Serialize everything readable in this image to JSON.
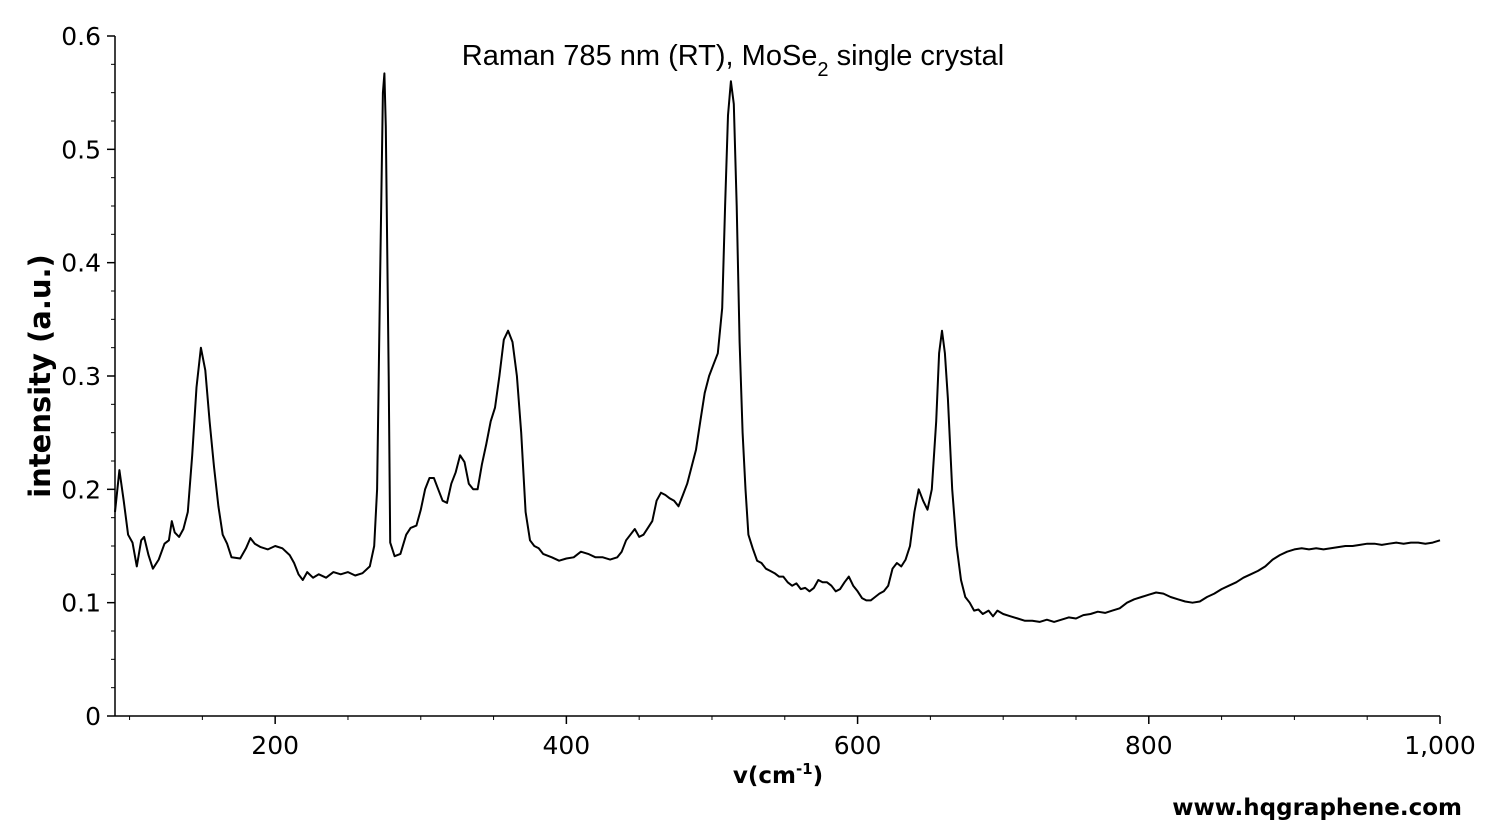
{
  "chart_data": {
    "type": "line",
    "title": {
      "prefix": "Raman 785 nm (RT), MoSe",
      "subscript": "2",
      "suffix": " single crystal"
    },
    "xlabel": {
      "main": "v(cm",
      "superscript": "-1",
      "close": ")"
    },
    "ylabel": "intensity (a.u.)",
    "credit": "www.hqgraphene.com",
    "xlim": [
      90,
      1000
    ],
    "ylim": [
      0,
      0.6
    ],
    "x_ticks": [
      {
        "value": 200,
        "label": "200"
      },
      {
        "value": 400,
        "label": "400"
      },
      {
        "value": 600,
        "label": "600"
      },
      {
        "value": 800,
        "label": "800"
      },
      {
        "value": 1000,
        "label": "1,000"
      }
    ],
    "y_ticks": [
      {
        "value": 0,
        "label": "0"
      },
      {
        "value": 0.1,
        "label": "0.1"
      },
      {
        "value": 0.2,
        "label": "0.2"
      },
      {
        "value": 0.3,
        "label": "0.3"
      },
      {
        "value": 0.4,
        "label": "0.4"
      },
      {
        "value": 0.5,
        "label": "0.5"
      },
      {
        "value": 0.6,
        "label": "0.6"
      }
    ],
    "grid": false,
    "line_color": "#000000",
    "series": [
      {
        "points": [
          [
            90,
            0.18
          ],
          [
            93,
            0.217
          ],
          [
            96,
            0.19
          ],
          [
            99,
            0.16
          ],
          [
            102,
            0.153
          ],
          [
            105,
            0.132
          ],
          [
            108,
            0.155
          ],
          [
            110,
            0.158
          ],
          [
            113,
            0.142
          ],
          [
            116,
            0.13
          ],
          [
            120,
            0.138
          ],
          [
            124,
            0.152
          ],
          [
            127,
            0.155
          ],
          [
            129,
            0.172
          ],
          [
            131,
            0.162
          ],
          [
            134,
            0.158
          ],
          [
            137,
            0.165
          ],
          [
            140,
            0.18
          ],
          [
            143,
            0.23
          ],
          [
            146,
            0.29
          ],
          [
            149,
            0.325
          ],
          [
            152,
            0.305
          ],
          [
            155,
            0.26
          ],
          [
            158,
            0.22
          ],
          [
            161,
            0.185
          ],
          [
            164,
            0.16
          ],
          [
            167,
            0.152
          ],
          [
            170,
            0.14
          ],
          [
            176,
            0.139
          ],
          [
            180,
            0.148
          ],
          [
            183,
            0.157
          ],
          [
            186,
            0.152
          ],
          [
            190,
            0.149
          ],
          [
            195,
            0.147
          ],
          [
            200,
            0.15
          ],
          [
            205,
            0.148
          ],
          [
            210,
            0.142
          ],
          [
            213,
            0.135
          ],
          [
            216,
            0.125
          ],
          [
            219,
            0.12
          ],
          [
            222,
            0.127
          ],
          [
            226,
            0.122
          ],
          [
            230,
            0.125
          ],
          [
            235,
            0.122
          ],
          [
            240,
            0.127
          ],
          [
            245,
            0.125
          ],
          [
            250,
            0.127
          ],
          [
            255,
            0.124
          ],
          [
            260,
            0.126
          ],
          [
            265,
            0.132
          ],
          [
            268,
            0.15
          ],
          [
            270,
            0.2
          ],
          [
            272,
            0.38
          ],
          [
            274,
            0.55
          ],
          [
            275,
            0.567
          ],
          [
            276,
            0.52
          ],
          [
            278,
            0.3
          ],
          [
            279,
            0.153
          ],
          [
            282,
            0.141
          ],
          [
            286,
            0.143
          ],
          [
            290,
            0.16
          ],
          [
            293,
            0.166
          ],
          [
            297,
            0.168
          ],
          [
            300,
            0.182
          ],
          [
            303,
            0.2
          ],
          [
            306,
            0.21
          ],
          [
            309,
            0.21
          ],
          [
            312,
            0.2
          ],
          [
            315,
            0.19
          ],
          [
            318,
            0.188
          ],
          [
            321,
            0.205
          ],
          [
            324,
            0.215
          ],
          [
            327,
            0.23
          ],
          [
            330,
            0.224
          ],
          [
            333,
            0.205
          ],
          [
            336,
            0.2
          ],
          [
            339,
            0.2
          ],
          [
            342,
            0.222
          ],
          [
            345,
            0.24
          ],
          [
            348,
            0.26
          ],
          [
            351,
            0.272
          ],
          [
            354,
            0.3
          ],
          [
            357,
            0.332
          ],
          [
            360,
            0.34
          ],
          [
            363,
            0.33
          ],
          [
            366,
            0.3
          ],
          [
            369,
            0.25
          ],
          [
            372,
            0.18
          ],
          [
            375,
            0.155
          ],
          [
            378,
            0.15
          ],
          [
            381,
            0.148
          ],
          [
            384,
            0.143
          ],
          [
            390,
            0.14
          ],
          [
            395,
            0.137
          ],
          [
            400,
            0.139
          ],
          [
            405,
            0.14
          ],
          [
            410,
            0.145
          ],
          [
            415,
            0.143
          ],
          [
            420,
            0.14
          ],
          [
            425,
            0.14
          ],
          [
            430,
            0.138
          ],
          [
            435,
            0.14
          ],
          [
            438,
            0.145
          ],
          [
            441,
            0.155
          ],
          [
            444,
            0.16
          ],
          [
            447,
            0.165
          ],
          [
            450,
            0.158
          ],
          [
            453,
            0.16
          ],
          [
            456,
            0.166
          ],
          [
            459,
            0.172
          ],
          [
            462,
            0.19
          ],
          [
            465,
            0.197
          ],
          [
            468,
            0.195
          ],
          [
            471,
            0.192
          ],
          [
            474,
            0.19
          ],
          [
            477,
            0.185
          ],
          [
            480,
            0.195
          ],
          [
            483,
            0.205
          ],
          [
            486,
            0.22
          ],
          [
            489,
            0.235
          ],
          [
            492,
            0.26
          ],
          [
            495,
            0.285
          ],
          [
            498,
            0.3
          ],
          [
            501,
            0.31
          ],
          [
            504,
            0.32
          ],
          [
            507,
            0.36
          ],
          [
            509,
            0.45
          ],
          [
            511,
            0.53
          ],
          [
            513,
            0.56
          ],
          [
            515,
            0.54
          ],
          [
            517,
            0.45
          ],
          [
            519,
            0.33
          ],
          [
            521,
            0.25
          ],
          [
            523,
            0.2
          ],
          [
            525,
            0.16
          ],
          [
            528,
            0.148
          ],
          [
            531,
            0.137
          ],
          [
            534,
            0.135
          ],
          [
            537,
            0.13
          ],
          [
            540,
            0.128
          ],
          [
            543,
            0.126
          ],
          [
            546,
            0.123
          ],
          [
            549,
            0.123
          ],
          [
            552,
            0.118
          ],
          [
            555,
            0.115
          ],
          [
            558,
            0.117
          ],
          [
            561,
            0.112
          ],
          [
            564,
            0.113
          ],
          [
            567,
            0.11
          ],
          [
            570,
            0.113
          ],
          [
            573,
            0.12
          ],
          [
            576,
            0.118
          ],
          [
            579,
            0.118
          ],
          [
            582,
            0.115
          ],
          [
            585,
            0.11
          ],
          [
            588,
            0.112
          ],
          [
            591,
            0.118
          ],
          [
            594,
            0.123
          ],
          [
            597,
            0.115
          ],
          [
            600,
            0.11
          ],
          [
            603,
            0.104
          ],
          [
            606,
            0.102
          ],
          [
            609,
            0.102
          ],
          [
            612,
            0.105
          ],
          [
            615,
            0.108
          ],
          [
            618,
            0.11
          ],
          [
            621,
            0.115
          ],
          [
            624,
            0.13
          ],
          [
            627,
            0.135
          ],
          [
            630,
            0.132
          ],
          [
            633,
            0.138
          ],
          [
            636,
            0.15
          ],
          [
            639,
            0.18
          ],
          [
            642,
            0.2
          ],
          [
            645,
            0.19
          ],
          [
            648,
            0.182
          ],
          [
            651,
            0.2
          ],
          [
            654,
            0.26
          ],
          [
            656,
            0.32
          ],
          [
            658,
            0.34
          ],
          [
            660,
            0.32
          ],
          [
            662,
            0.28
          ],
          [
            665,
            0.2
          ],
          [
            668,
            0.15
          ],
          [
            671,
            0.12
          ],
          [
            674,
            0.105
          ],
          [
            677,
            0.1
          ],
          [
            680,
            0.093
          ],
          [
            683,
            0.094
          ],
          [
            686,
            0.09
          ],
          [
            690,
            0.093
          ],
          [
            693,
            0.088
          ],
          [
            696,
            0.093
          ],
          [
            700,
            0.09
          ],
          [
            705,
            0.088
          ],
          [
            710,
            0.086
          ],
          [
            715,
            0.084
          ],
          [
            720,
            0.084
          ],
          [
            725,
            0.083
          ],
          [
            730,
            0.085
          ],
          [
            735,
            0.083
          ],
          [
            740,
            0.085
          ],
          [
            745,
            0.087
          ],
          [
            750,
            0.086
          ],
          [
            755,
            0.089
          ],
          [
            760,
            0.09
          ],
          [
            765,
            0.092
          ],
          [
            770,
            0.091
          ],
          [
            775,
            0.093
          ],
          [
            780,
            0.095
          ],
          [
            785,
            0.1
          ],
          [
            790,
            0.103
          ],
          [
            795,
            0.105
          ],
          [
            800,
            0.107
          ],
          [
            805,
            0.109
          ],
          [
            810,
            0.108
          ],
          [
            815,
            0.105
          ],
          [
            820,
            0.103
          ],
          [
            825,
            0.101
          ],
          [
            830,
            0.1
          ],
          [
            835,
            0.101
          ],
          [
            840,
            0.105
          ],
          [
            845,
            0.108
          ],
          [
            850,
            0.112
          ],
          [
            855,
            0.115
          ],
          [
            860,
            0.118
          ],
          [
            865,
            0.122
          ],
          [
            870,
            0.125
          ],
          [
            875,
            0.128
          ],
          [
            880,
            0.132
          ],
          [
            885,
            0.138
          ],
          [
            890,
            0.142
          ],
          [
            895,
            0.145
          ],
          [
            900,
            0.147
          ],
          [
            905,
            0.148
          ],
          [
            910,
            0.147
          ],
          [
            915,
            0.148
          ],
          [
            920,
            0.147
          ],
          [
            925,
            0.148
          ],
          [
            930,
            0.149
          ],
          [
            935,
            0.15
          ],
          [
            940,
            0.15
          ],
          [
            945,
            0.151
          ],
          [
            950,
            0.152
          ],
          [
            955,
            0.152
          ],
          [
            960,
            0.151
          ],
          [
            965,
            0.152
          ],
          [
            970,
            0.153
          ],
          [
            975,
            0.152
          ],
          [
            980,
            0.153
          ],
          [
            985,
            0.153
          ],
          [
            990,
            0.152
          ],
          [
            995,
            0.153
          ],
          [
            1000,
            0.155
          ]
        ]
      }
    ]
  }
}
